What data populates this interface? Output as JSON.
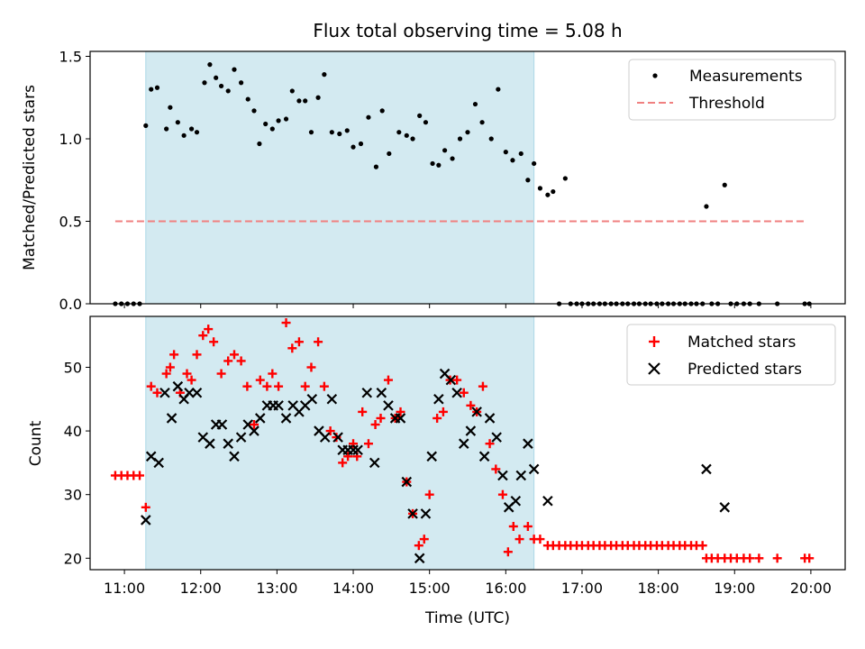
{
  "chart_data": {
    "type": "scatter",
    "title": "Flux total observing time = 5.08 h",
    "xlabel": "Time (UTC)",
    "x_unit": "hours UTC",
    "xlim": [
      10.55,
      20.45
    ],
    "xtick_values": [
      11,
      12,
      13,
      14,
      15,
      16,
      17,
      18,
      19,
      20
    ],
    "xtick_labels": [
      "11:00",
      "12:00",
      "13:00",
      "14:00",
      "15:00",
      "16:00",
      "17:00",
      "18:00",
      "19:00",
      "20:00"
    ],
    "observing_window": {
      "start": 11.28,
      "end": 16.37,
      "color": "#d3eaf1"
    },
    "top_panel": {
      "ylabel": "Matched/Predicted stars",
      "ylim": [
        0,
        1.53
      ],
      "yticks": [
        "0.0",
        "0.5",
        "1.0",
        "1.5"
      ],
      "ytick_values": [
        0,
        0.5,
        1.0,
        1.5
      ],
      "threshold": {
        "name": "Threshold",
        "value": 0.5,
        "x_range": [
          10.88,
          19.95
        ],
        "color": "#f08080"
      },
      "measurements": {
        "name": "Measurements",
        "color": "#000000",
        "x": [
          10.88,
          10.96,
          11.04,
          11.12,
          11.2,
          11.28,
          11.35,
          11.43,
          11.55,
          11.6,
          11.7,
          11.78,
          11.88,
          11.95,
          12.05,
          12.12,
          12.2,
          12.27,
          12.36,
          12.44,
          12.53,
          12.62,
          12.7,
          12.77,
          12.85,
          12.94,
          13.02,
          13.12,
          13.2,
          13.29,
          13.37,
          13.45,
          13.54,
          13.62,
          13.72,
          13.82,
          13.92,
          14.0,
          14.1,
          14.2,
          14.3,
          14.38,
          14.47,
          14.6,
          14.7,
          14.78,
          14.87,
          14.95,
          15.04,
          15.12,
          15.2,
          15.3,
          15.4,
          15.5,
          15.6,
          15.69,
          15.81,
          15.9,
          16.0,
          16.09,
          16.2,
          16.29,
          16.37,
          16.45,
          16.55,
          16.62,
          16.7,
          16.78,
          16.85,
          16.93,
          17.0,
          17.08,
          17.15,
          17.23,
          17.3,
          17.38,
          17.45,
          17.53,
          17.6,
          17.68,
          17.75,
          17.83,
          17.9,
          17.98,
          18.05,
          18.13,
          18.2,
          18.28,
          18.35,
          18.43,
          18.5,
          18.58,
          18.63,
          18.7,
          18.78,
          18.87,
          18.95,
          19.03,
          19.12,
          19.2,
          19.32,
          19.56,
          19.92,
          19.98
        ],
        "y": [
          0,
          0,
          0,
          0,
          0,
          1.08,
          1.3,
          1.31,
          1.06,
          1.19,
          1.1,
          1.02,
          1.06,
          1.04,
          1.34,
          1.45,
          1.37,
          1.32,
          1.29,
          1.42,
          1.34,
          1.24,
          1.17,
          0.97,
          1.09,
          1.06,
          1.11,
          1.12,
          1.29,
          1.23,
          1.23,
          1.04,
          1.25,
          1.39,
          1.04,
          1.03,
          1.05,
          0.95,
          0.97,
          1.13,
          0.83,
          1.17,
          0.91,
          1.04,
          1.02,
          1.0,
          1.14,
          1.1,
          0.85,
          0.84,
          0.93,
          0.88,
          1.0,
          1.04,
          1.21,
          1.1,
          1.0,
          1.3,
          0.92,
          0.87,
          0.91,
          0.75,
          0.85,
          0.7,
          0.66,
          0.68,
          0,
          0.76,
          0,
          0,
          0,
          0,
          0,
          0,
          0,
          0,
          0,
          0,
          0,
          0,
          0,
          0,
          0,
          0,
          0,
          0,
          0,
          0,
          0,
          0,
          0,
          0,
          0.59,
          0,
          0,
          0.72,
          0,
          0,
          0,
          0,
          0,
          0,
          0,
          0
        ]
      }
    },
    "bottom_panel": {
      "ylabel": "Count",
      "ylim": [
        18.2,
        58
      ],
      "yticks": [
        "20",
        "30",
        "40",
        "50"
      ],
      "ytick_values": [
        20,
        30,
        40,
        50
      ],
      "matched": {
        "name": "Matched stars",
        "color": "#ff0000",
        "x": [
          10.88,
          10.96,
          11.04,
          11.12,
          11.2,
          11.28,
          11.35,
          11.43,
          11.55,
          11.6,
          11.65,
          11.73,
          11.82,
          11.88,
          11.95,
          12.03,
          12.1,
          12.17,
          12.27,
          12.36,
          12.44,
          12.53,
          12.61,
          12.7,
          12.78,
          12.87,
          12.94,
          13.02,
          13.12,
          13.2,
          13.29,
          13.37,
          13.45,
          13.54,
          13.62,
          13.7,
          13.78,
          13.86,
          13.93,
          14.0,
          14.05,
          14.12,
          14.2,
          14.29,
          14.36,
          14.46,
          14.55,
          14.62,
          14.7,
          14.78,
          14.86,
          14.93,
          15.0,
          15.1,
          15.18,
          15.27,
          15.36,
          15.45,
          15.54,
          15.62,
          15.7,
          15.79,
          15.87,
          15.96,
          16.03,
          16.1,
          16.18,
          16.29,
          16.37,
          16.45,
          16.55,
          16.62,
          16.7,
          16.78,
          16.85,
          16.93,
          17.0,
          17.08,
          17.15,
          17.23,
          17.3,
          17.38,
          17.45,
          17.53,
          17.6,
          17.68,
          17.75,
          17.83,
          17.9,
          17.98,
          18.05,
          18.13,
          18.2,
          18.28,
          18.35,
          18.43,
          18.5,
          18.58,
          18.63,
          18.7,
          18.78,
          18.87,
          18.95,
          19.03,
          19.12,
          19.2,
          19.32,
          19.56,
          19.92,
          19.98
        ],
        "y": [
          33,
          33,
          33,
          33,
          33,
          28,
          47,
          46,
          49,
          50,
          52,
          46,
          49,
          48,
          52,
          55,
          56,
          54,
          49,
          51,
          52,
          51,
          47,
          41,
          48,
          47,
          49,
          47,
          57,
          53,
          54,
          47,
          50,
          54,
          47,
          40,
          39,
          35,
          36,
          38,
          36,
          43,
          38,
          41,
          42,
          48,
          42,
          43,
          32,
          27,
          22,
          23,
          30,
          42,
          43,
          48,
          48,
          46,
          44,
          43,
          47,
          38,
          34,
          30,
          21,
          25,
          23,
          25,
          23,
          23,
          22,
          22,
          22,
          22,
          22,
          22,
          22,
          22,
          22,
          22,
          22,
          22,
          22,
          22,
          22,
          22,
          22,
          22,
          22,
          22,
          22,
          22,
          22,
          22,
          22,
          22,
          22,
          22,
          20,
          20,
          20,
          20,
          20,
          20,
          20,
          20,
          20,
          20,
          20,
          20
        ]
      },
      "predicted": {
        "name": "Predicted stars",
        "color": "#000000",
        "x": [
          11.28,
          11.35,
          11.45,
          11.53,
          11.62,
          11.7,
          11.78,
          11.85,
          11.95,
          12.03,
          12.12,
          12.2,
          12.28,
          12.36,
          12.44,
          12.53,
          12.62,
          12.7,
          12.78,
          12.87,
          12.95,
          13.02,
          13.12,
          13.21,
          13.29,
          13.37,
          13.46,
          13.55,
          13.63,
          13.72,
          13.8,
          13.86,
          13.93,
          14.0,
          14.06,
          14.18,
          14.28,
          14.37,
          14.46,
          14.55,
          14.62,
          14.7,
          14.78,
          14.87,
          14.95,
          15.03,
          15.12,
          15.2,
          15.28,
          15.36,
          15.45,
          15.54,
          15.62,
          15.72,
          15.79,
          15.88,
          15.96,
          16.04,
          16.13,
          16.2,
          16.29,
          16.37,
          16.55,
          18.63,
          18.87
        ],
        "y": [
          26,
          36,
          35,
          46,
          42,
          47,
          45,
          46,
          46,
          39,
          38,
          41,
          41,
          38,
          36,
          39,
          41,
          40,
          42,
          44,
          44,
          44,
          42,
          44,
          43,
          44,
          45,
          40,
          39,
          45,
          39,
          37,
          37,
          37,
          37,
          46,
          35,
          46,
          44,
          42,
          42,
          32,
          27,
          20,
          27,
          36,
          45,
          49,
          48,
          46,
          38,
          40,
          43,
          36,
          42,
          39,
          33,
          28,
          29,
          33,
          38,
          34,
          29,
          34,
          28
        ]
      }
    },
    "legend": {
      "placement": "top-right"
    }
  }
}
